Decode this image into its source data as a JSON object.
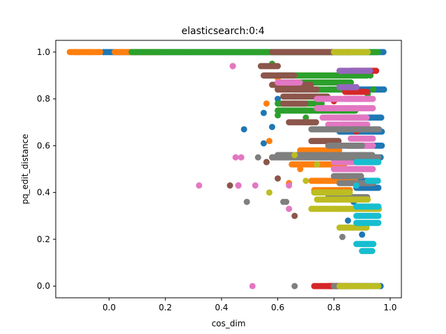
{
  "chart_data": {
    "type": "scatter",
    "title": "elasticsearch:0:4",
    "xlabel": "cos_dim",
    "ylabel": "pq_edit_distance",
    "xlim": [
      -0.19,
      1.04
    ],
    "ylim": [
      -0.05,
      1.05
    ],
    "xticks": [
      0.0,
      0.2,
      0.4,
      0.6,
      0.8,
      1.0
    ],
    "yticks": [
      0.0,
      0.2,
      0.4,
      0.6,
      0.8,
      1.0
    ],
    "xtick_labels": [
      "0.0",
      "0.2",
      "0.4",
      "0.6",
      "0.8",
      "1.0"
    ],
    "ytick_labels": [
      "0.0",
      "0.2",
      "0.4",
      "0.6",
      "0.8",
      "1.0"
    ],
    "grid": false,
    "legend": "none",
    "series": [
      {
        "color": "#1f77b4",
        "segments": [
          [
            -0.02,
            0.98,
            1.0
          ],
          [
            0.78,
            0.98,
            0.84
          ],
          [
            0.83,
            0.97,
            0.72
          ],
          [
            0.82,
            0.97,
            0.66
          ],
          [
            0.85,
            0.97,
            0.6
          ],
          [
            0.72,
            0.97,
            0.55
          ],
          [
            0.86,
            0.96,
            0.45
          ],
          [
            0.88,
            0.96,
            0.42
          ],
          [
            0.78,
            0.97,
            0.0
          ]
        ],
        "points": [
          [
            -0.11,
            1.0
          ],
          [
            0.6,
            0.8
          ],
          [
            0.55,
            0.74
          ],
          [
            0.58,
            0.68
          ],
          [
            0.48,
            0.67
          ],
          [
            0.55,
            0.61
          ],
          [
            0.56,
            0.53
          ],
          [
            0.87,
            0.36
          ],
          [
            0.85,
            0.28
          ],
          [
            0.9,
            0.22
          ]
        ]
      },
      {
        "color": "#ff7f0e",
        "segments": [
          [
            -0.14,
            -0.03,
            1.0
          ],
          [
            0.02,
            0.18,
            1.0
          ],
          [
            0.68,
            0.82,
            0.58
          ],
          [
            0.62,
            0.78,
            0.55
          ],
          [
            0.65,
            0.84,
            0.52
          ],
          [
            0.72,
            0.88,
            0.45
          ],
          [
            0.73,
            0.86,
            0.41
          ],
          [
            0.8,
            0.9,
            0.37
          ],
          [
            0.78,
            0.84,
            0.0
          ]
        ],
        "points": [
          [
            -0.07,
            1.0
          ],
          [
            0.56,
            0.78
          ],
          [
            0.6,
            0.89
          ],
          [
            0.57,
            0.62
          ],
          [
            0.64,
            0.44
          ],
          [
            0.68,
            0.5
          ],
          [
            0.58,
            0.55
          ]
        ]
      },
      {
        "color": "#2ca02c",
        "segments": [
          [
            0.08,
            0.96,
            1.0
          ],
          [
            0.6,
            0.92,
            0.9
          ],
          [
            0.62,
            0.86,
            0.87
          ],
          [
            0.66,
            0.84,
            0.84
          ],
          [
            0.6,
            0.76,
            0.78
          ],
          [
            0.6,
            0.88,
            0.75
          ]
        ],
        "points": [
          [
            0.58,
            0.95
          ],
          [
            0.6,
            0.73
          ],
          [
            0.66,
            0.81
          ],
          [
            0.7,
            0.72
          ],
          [
            0.92,
            0.82
          ],
          [
            0.93,
            0.9
          ],
          [
            0.94,
            0.84
          ]
        ]
      },
      {
        "color": "#d62728",
        "segments": [
          [
            0.86,
            0.95,
            0.92
          ],
          [
            0.84,
            0.92,
            0.83
          ],
          [
            0.73,
            0.86,
            0.0
          ]
        ],
        "points": [
          [
            0.8,
            0.79
          ],
          [
            0.88,
            0.66
          ],
          [
            0.9,
            0.56
          ]
        ]
      },
      {
        "color": "#9467bd",
        "segments": [
          [
            0.82,
            0.93,
            0.92
          ],
          [
            0.82,
            0.88,
            0.85
          ],
          [
            0.84,
            0.9,
            0.8
          ]
        ],
        "points": []
      },
      {
        "color": "#8c564b",
        "segments": [
          [
            0.58,
            0.86,
            1.0
          ],
          [
            0.54,
            0.6,
            0.94
          ],
          [
            0.55,
            0.66,
            0.9
          ],
          [
            0.58,
            0.72,
            0.86
          ],
          [
            0.6,
            0.74,
            0.84
          ],
          [
            0.62,
            0.78,
            0.81
          ],
          [
            0.62,
            0.7,
            0.78
          ],
          [
            0.64,
            0.74,
            0.7
          ],
          [
            0.72,
            0.82,
            0.62
          ]
        ],
        "points": [
          [
            0.44,
            0.94
          ],
          [
            0.43,
            0.43
          ],
          [
            0.46,
            0.43
          ],
          [
            0.56,
            0.53
          ],
          [
            0.6,
            0.46
          ],
          [
            0.66,
            0.3
          ]
        ]
      },
      {
        "color": "#e377c2",
        "segments": [
          [
            0.6,
            0.68,
            0.87
          ],
          [
            0.74,
            0.94,
            0.8
          ],
          [
            0.74,
            0.94,
            0.76
          ],
          [
            0.76,
            0.92,
            0.72
          ],
          [
            0.78,
            0.92,
            0.69
          ],
          [
            0.86,
            0.94,
            0.63
          ],
          [
            0.86,
            0.94,
            0.6
          ],
          [
            0.8,
            0.96,
            0.53
          ],
          [
            0.8,
            0.94,
            0.5
          ],
          [
            0.86,
            0.94,
            0.33
          ]
        ],
        "points": [
          [
            0.44,
            0.94
          ],
          [
            0.32,
            0.43
          ],
          [
            0.45,
            0.55
          ],
          [
            0.47,
            0.55
          ],
          [
            0.46,
            0.43
          ],
          [
            0.52,
            0.43
          ],
          [
            0.64,
            0.43
          ],
          [
            0.64,
            0.33
          ],
          [
            0.51,
            0.0
          ]
        ]
      },
      {
        "color": "#7f7f7f",
        "segments": [
          [
            0.58,
            0.96,
            0.55
          ],
          [
            0.6,
            0.94,
            0.56
          ],
          [
            0.72,
            0.96,
            0.67
          ],
          [
            0.78,
            0.9,
            0.6
          ],
          [
            0.8,
            0.9,
            0.47
          ],
          [
            0.82,
            0.94,
            0.44
          ],
          [
            0.78,
            0.92,
            0.38
          ],
          [
            0.8,
            0.92,
            0.0
          ]
        ],
        "points": [
          [
            0.49,
            0.36
          ],
          [
            0.53,
            0.55
          ],
          [
            0.62,
            0.36
          ],
          [
            0.63,
            0.36
          ],
          [
            0.66,
            0.0
          ],
          [
            0.83,
            0.21
          ],
          [
            0.85,
            0.25
          ]
        ]
      },
      {
        "color": "#bcbd22",
        "segments": [
          [
            0.8,
            0.92,
            1.0
          ],
          [
            0.73,
            0.86,
            0.4
          ],
          [
            0.74,
            0.92,
            0.37
          ],
          [
            0.72,
            0.96,
            0.33
          ],
          [
            0.82,
            0.92,
            0.25
          ],
          [
            0.82,
            0.96,
            0.0
          ]
        ],
        "points": [
          [
            0.57,
            0.4
          ],
          [
            0.74,
            0.52
          ],
          [
            0.66,
            0.56
          ],
          [
            0.7,
            0.45
          ]
        ]
      },
      {
        "color": "#17becf",
        "segments": [
          [
            0.88,
            0.96,
            0.34
          ],
          [
            0.88,
            0.96,
            0.3
          ],
          [
            0.88,
            0.96,
            0.27
          ],
          [
            0.88,
            0.94,
            0.18
          ],
          [
            0.9,
            0.94,
            0.15
          ],
          [
            0.88,
            0.96,
            0.53
          ],
          [
            0.92,
            0.96,
            0.45
          ]
        ],
        "points": [
          [
            0.88,
            0.43
          ]
        ]
      }
    ]
  }
}
